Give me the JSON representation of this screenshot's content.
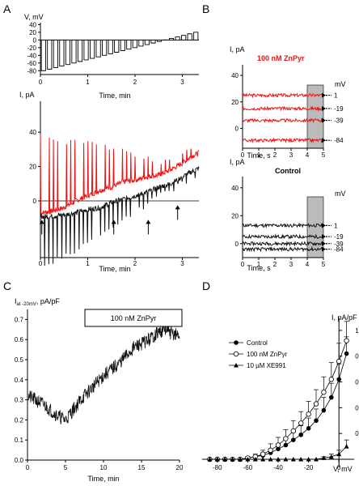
{
  "panels": {
    "a": "A",
    "b": "B",
    "c": "C",
    "d": "D"
  },
  "colors": {
    "red": "#ee1111",
    "black": "#111111",
    "shade": "#bbbbbb"
  },
  "chart_data": [
    {
      "id": "A-top",
      "type": "bar",
      "ylabel": "V, mV",
      "xlabel": "Time, min",
      "x_ticks": [
        "0",
        "1",
        "2",
        "3"
      ],
      "xlim": [
        0,
        3.35
      ],
      "y_ticks": [
        "40",
        "20",
        "0",
        "-20",
        "-40",
        "-60",
        "-80"
      ],
      "ylim": [
        -90,
        45
      ],
      "step_levels_mV": [
        -80,
        -76,
        -72,
        -68,
        -64,
        -60,
        -56,
        -52,
        -48,
        -44,
        -40,
        -36,
        -32,
        -28,
        -24,
        -20,
        -16,
        -12,
        -8,
        -4,
        0,
        4,
        8,
        12,
        16,
        20
      ]
    },
    {
      "id": "A-bottom",
      "type": "line",
      "ylabel": "I, pA",
      "xlabel": "Time, min",
      "x_ticks": [
        "0",
        "1",
        "2",
        "3"
      ],
      "xlim": [
        0,
        3.35
      ],
      "y_ticks": [
        "40",
        "20",
        "0"
      ],
      "ylim": [
        -33,
        58
      ],
      "series": [
        {
          "color": "red",
          "points": [
            [
              0,
              -7
            ],
            [
              0.25,
              -6
            ],
            [
              0.5,
              -4
            ],
            [
              0.75,
              0
            ],
            [
              1.0,
              3
            ],
            [
              1.25,
              6
            ],
            [
              1.5,
              8
            ],
            [
              1.75,
              11
            ],
            [
              2.0,
              12
            ],
            [
              2.25,
              14
            ],
            [
              2.5,
              15
            ],
            [
              2.75,
              18
            ],
            [
              3.0,
              22
            ],
            [
              3.2,
              26
            ],
            [
              3.35,
              28
            ]
          ]
        },
        {
          "color": "black",
          "points": [
            [
              0,
              -9
            ],
            [
              0.25,
              -9
            ],
            [
              0.5,
              -8
            ],
            [
              0.75,
              -7
            ],
            [
              1.0,
              -5
            ],
            [
              1.25,
              -4
            ],
            [
              1.5,
              -1
            ],
            [
              1.75,
              1
            ],
            [
              2.0,
              3
            ],
            [
              2.25,
              5
            ],
            [
              2.5,
              8
            ],
            [
              2.75,
              10
            ],
            [
              3.0,
              14
            ],
            [
              3.2,
              17
            ],
            [
              3.35,
              19
            ]
          ]
        }
      ],
      "arrow_times_min": [
        0.03,
        1.55,
        2.28,
        2.9
      ]
    },
    {
      "id": "B-top",
      "type": "line",
      "title": "100 nM ZnPyr",
      "ylabel": "I, pA",
      "xlabel": "Time, s",
      "x_ticks": [
        "0",
        "1",
        "2",
        "3",
        "4",
        "5"
      ],
      "xlim": [
        0,
        5
      ],
      "y_ticks": [
        "40",
        "20",
        "0"
      ],
      "ylim": [
        -15,
        48
      ],
      "legend_title": "mV",
      "series": [
        {
          "name": "1",
          "level": 25
        },
        {
          "name": "-19",
          "level": 15
        },
        {
          "name": "-39",
          "level": 6
        },
        {
          "name": "-84",
          "level": -9
        }
      ]
    },
    {
      "id": "B-bottom",
      "type": "line",
      "title": "Control",
      "ylabel": "I, pA",
      "xlabel": "Time, s",
      "x_ticks": [
        "0",
        "1",
        "2",
        "3",
        "4",
        "5"
      ],
      "xlim": [
        0,
        5
      ],
      "y_ticks": [
        "40",
        "20",
        "0"
      ],
      "ylim": [
        -10,
        48
      ],
      "legend_title": "mV",
      "series": [
        {
          "name": "1",
          "level": 13
        },
        {
          "name": "-19",
          "level": 5
        },
        {
          "name": "-39",
          "level": 0
        },
        {
          "name": "-84",
          "level": -4
        }
      ]
    },
    {
      "id": "C",
      "type": "line",
      "ylabel_main": "I",
      "ylabel_sub": "at -20mV",
      "ylabel_rest": ", pA/pF",
      "xlabel": "Time, min",
      "annotation": "100 nM ZnPyr",
      "x_ticks": [
        "0",
        "5",
        "10",
        "15",
        "20"
      ],
      "xlim": [
        0,
        20
      ],
      "y_ticks": [
        "0.0",
        "0.1",
        "0.2",
        "0.3",
        "0.4",
        "0.5",
        "0.6",
        "0.7"
      ],
      "ylim": [
        0,
        0.75
      ],
      "trend": [
        [
          0,
          0.32
        ],
        [
          1,
          0.3
        ],
        [
          2,
          0.28
        ],
        [
          3,
          0.25
        ],
        [
          4,
          0.22
        ],
        [
          5,
          0.2
        ],
        [
          6,
          0.25
        ],
        [
          7,
          0.3
        ],
        [
          8,
          0.34
        ],
        [
          9,
          0.38
        ],
        [
          10,
          0.42
        ],
        [
          11,
          0.45
        ],
        [
          12,
          0.48
        ],
        [
          13,
          0.52
        ],
        [
          14,
          0.56
        ],
        [
          15,
          0.58
        ],
        [
          16,
          0.6
        ],
        [
          17,
          0.63
        ],
        [
          18,
          0.65
        ],
        [
          19,
          0.63
        ],
        [
          20,
          0.62
        ]
      ]
    },
    {
      "id": "D",
      "type": "line",
      "ylabel": "I, pA/pF",
      "xlabel": "V, mV",
      "x_ticks": [
        "-80",
        "-60",
        "-40",
        "-20",
        "0"
      ],
      "xlim": [
        -90,
        10
      ],
      "y_ticks": [
        "0.2",
        "0.4",
        "0.6",
        "0.8",
        "1.0"
      ],
      "ylim": [
        0,
        1.1
      ],
      "x": [
        -85,
        -80,
        -75,
        -70,
        -65,
        -60,
        -55,
        -50,
        -45,
        -40,
        -35,
        -30,
        -25,
        -20,
        -15,
        -10,
        -5,
        0,
        5
      ],
      "series": [
        {
          "name": "Control",
          "marker": "filled-circle",
          "values": [
            0,
            0,
            0,
            0,
            0,
            0.01,
            0.02,
            0.03,
            0.05,
            0.08,
            0.11,
            0.15,
            0.19,
            0.24,
            0.3,
            0.38,
            0.48,
            0.62,
            0.82
          ],
          "errors": [
            0,
            0,
            0,
            0,
            0,
            0.01,
            0.01,
            0.02,
            0.03,
            0.04,
            0.05,
            0.06,
            0.07,
            0.08,
            0.09,
            0.1,
            0.11,
            0.12,
            0.13
          ]
        },
        {
          "name": "100 nM ZnPyr",
          "marker": "open-circle",
          "values": [
            0,
            0,
            0,
            0,
            0,
            0.01,
            0.02,
            0.04,
            0.07,
            0.11,
            0.16,
            0.22,
            0.28,
            0.35,
            0.43,
            0.52,
            0.62,
            0.76,
            0.92
          ],
          "errors": [
            0,
            0,
            0,
            0,
            0,
            0.01,
            0.02,
            0.03,
            0.05,
            0.06,
            0.07,
            0.08,
            0.09,
            0.1,
            0.11,
            0.12,
            0.13,
            0.14,
            0.15
          ]
        },
        {
          "name": "10 µM XE991",
          "marker": "filled-triangle",
          "values": [
            0,
            0,
            0,
            0,
            0,
            0,
            0,
            0,
            0,
            0,
            0,
            0,
            0,
            0,
            0,
            0.01,
            0.02,
            0.04,
            0.1
          ],
          "errors": [
            0,
            0,
            0,
            0,
            0,
            0,
            0,
            0,
            0,
            0,
            0,
            0,
            0,
            0,
            0,
            0.01,
            0.02,
            0.03,
            0.05
          ]
        }
      ]
    }
  ]
}
